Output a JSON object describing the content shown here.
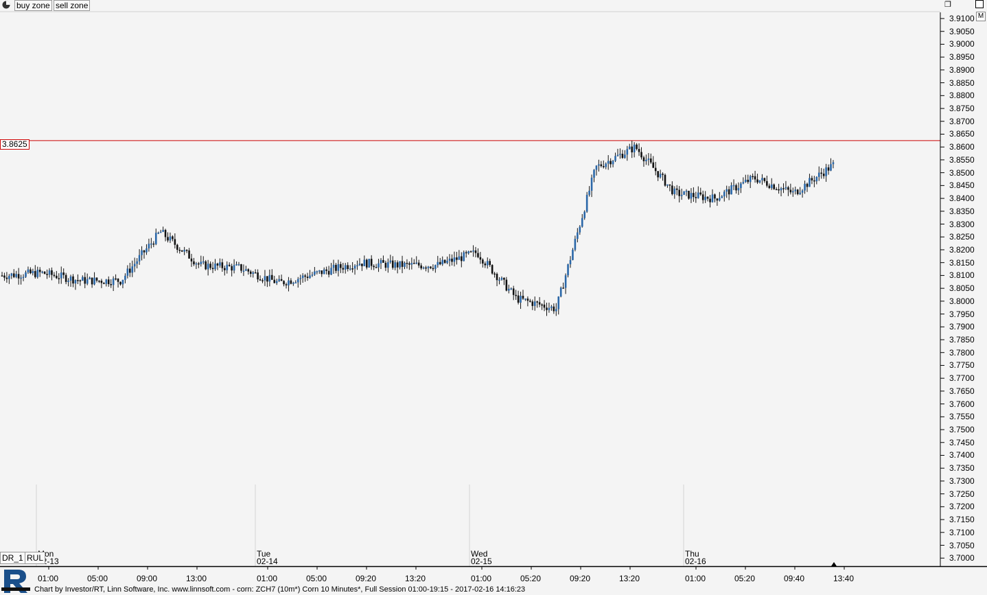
{
  "toolbar": {
    "buttons": [
      "buy zone",
      "sell zone"
    ],
    "corner_badge": "M"
  },
  "left_buttons": [
    "DR_1",
    "RUL"
  ],
  "footer_text": "Chart by Investor/RT, Linn Software, Inc. www.linnsoft.com - corn: ZCH7 (10m*) Corn 10 Minutes*, Full Session 01:00-19:15 - 2017-02-16 14:16:23",
  "colors": {
    "up_bar": "#2a67a8",
    "down_bar": "#111111",
    "ref_line": "#cc0000",
    "background": "#f4f4f4"
  },
  "chart_data": {
    "type": "line",
    "style": "ohlc-bars",
    "symbol": "ZCH7",
    "interval": "10 Minutes",
    "ylim": [
      3.695,
      3.913
    ],
    "y_ticks": [
      "3.9100",
      "3.9050",
      "3.9000",
      "3.8950",
      "3.8900",
      "3.8850",
      "3.8800",
      "3.8750",
      "3.8700",
      "3.8650",
      "3.8600",
      "3.8550",
      "3.8500",
      "3.8450",
      "3.8400",
      "3.8350",
      "3.8300",
      "3.8250",
      "3.8200",
      "3.8150",
      "3.8100",
      "3.8050",
      "3.8000",
      "3.7950",
      "3.7900",
      "3.7850",
      "3.7800",
      "3.7750",
      "3.7700",
      "3.7650",
      "3.7600",
      "3.7550",
      "3.7500",
      "3.7450",
      "3.7400",
      "3.7350",
      "3.7300",
      "3.7250",
      "3.7200",
      "3.7150",
      "3.7100",
      "3.7050",
      "3.7000"
    ],
    "reference_line": {
      "value": 3.8625,
      "label": "3.8625"
    },
    "day_labels": [
      {
        "top": "Mon",
        "bottom": "02-13"
      },
      {
        "top": "Tue",
        "bottom": "02-14"
      },
      {
        "top": "Wed",
        "bottom": "02-15"
      },
      {
        "top": "Thu",
        "bottom": "02-16"
      }
    ],
    "x_ticks": [
      [
        "01:00",
        "05:00",
        "09:00",
        "13:00"
      ],
      [
        "01:00",
        "05:00",
        "09:20",
        "13:20"
      ],
      [
        "01:00",
        "05:20",
        "09:20",
        "13:20"
      ],
      [
        "01:00",
        "05:20",
        "09:40",
        "13:40"
      ]
    ],
    "x": [
      "02-13 01:00",
      "02-13 05:00",
      "02-13 09:00",
      "02-13 13:00",
      "02-13 16:00",
      "02-14 01:00",
      "02-14 05:00",
      "02-14 09:20",
      "02-14 13:20",
      "02-14 16:00",
      "02-15 01:00",
      "02-15 05:20",
      "02-15 09:20",
      "02-15 12:00",
      "02-15 13:20",
      "02-15 15:00",
      "02-15 17:00",
      "02-16 01:00",
      "02-16 05:20",
      "02-16 09:40",
      "02-16 13:00",
      "02-16 13:40"
    ],
    "series": [
      {
        "values": [
          3.81,
          3.811,
          3.808,
          3.808,
          3.827,
          3.814,
          3.813,
          3.807,
          3.811,
          3.815,
          3.814,
          3.814,
          3.819,
          3.801,
          3.797,
          3.852,
          3.86,
          3.842,
          3.84,
          3.848,
          3.842,
          3.853
        ]
      }
    ]
  }
}
